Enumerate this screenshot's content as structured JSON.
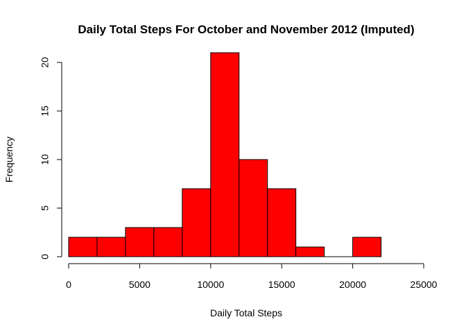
{
  "chart_data": {
    "type": "bar",
    "title": "Daily Total Steps For October and November 2012 (Imputed)",
    "xlabel": "Daily Total Steps",
    "ylabel": "Frequency",
    "bins": [
      {
        "start": 0,
        "end": 2000,
        "count": 2
      },
      {
        "start": 2000,
        "end": 4000,
        "count": 2
      },
      {
        "start": 4000,
        "end": 6000,
        "count": 3
      },
      {
        "start": 6000,
        "end": 8000,
        "count": 3
      },
      {
        "start": 8000,
        "end": 10000,
        "count": 7
      },
      {
        "start": 10000,
        "end": 12000,
        "count": 21
      },
      {
        "start": 12000,
        "end": 14000,
        "count": 10
      },
      {
        "start": 14000,
        "end": 16000,
        "count": 7
      },
      {
        "start": 16000,
        "end": 18000,
        "count": 1
      },
      {
        "start": 18000,
        "end": 20000,
        "count": 0
      },
      {
        "start": 20000,
        "end": 22000,
        "count": 2
      }
    ],
    "x_ticks": [
      0,
      5000,
      10000,
      15000,
      20000,
      25000
    ],
    "y_ticks": [
      0,
      5,
      10,
      15,
      20
    ],
    "xlim": [
      0,
      25000
    ],
    "ylim": [
      0,
      21
    ],
    "grid": false,
    "bar_color": "#ff0000",
    "bar_border_color": "#000000"
  }
}
